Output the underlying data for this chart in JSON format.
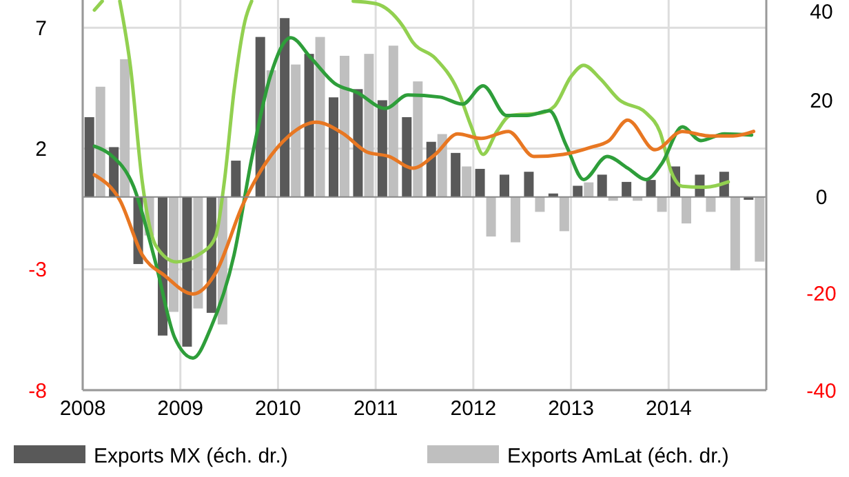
{
  "chart_data": {
    "type": "line",
    "xlim": [
      2008,
      2015
    ],
    "xticks": [
      2008,
      2009,
      2010,
      2011,
      2012,
      2013,
      2014
    ],
    "ylim": [
      -8,
      8.15
    ],
    "yticks": [
      -8,
      -3,
      2,
      7
    ],
    "y2lim": [
      -40,
      40.75
    ],
    "y2ticks": [
      -40,
      -20,
      0,
      20,
      40
    ],
    "grid": true,
    "legend": "bottom",
    "series": [
      {
        "type": "bar",
        "axis": "y2",
        "name": "Exports MX (éch. dr.)",
        "color": "#595959",
        "x": [
          2008.125,
          2008.375,
          2008.625,
          2008.875,
          2009.125,
          2009.375,
          2009.625,
          2009.875,
          2010.125,
          2010.375,
          2010.625,
          2010.875,
          2011.125,
          2011.375,
          2011.625,
          2011.875,
          2012.125,
          2012.375,
          2012.625,
          2012.875,
          2013.125,
          2013.375,
          2013.625,
          2013.875,
          2014.125,
          2014.375,
          2014.625,
          2014.875
        ],
        "values": [
          16.5,
          10.3,
          -13.9,
          -28.7,
          -31,
          -24,
          7.5,
          33.1,
          37,
          29.6,
          20.6,
          22.3,
          20,
          16.5,
          11.4,
          9.1,
          5.8,
          4.6,
          5.2,
          0.7,
          2.3,
          4.6,
          3.1,
          3.5,
          6.3,
          4.6,
          5.2,
          -0.6
        ]
      },
      {
        "type": "bar",
        "axis": "y2",
        "name": "Exports AmLat (éch. dr.)",
        "color": "#bfbfbf",
        "x": [
          2008.125,
          2008.375,
          2008.625,
          2008.875,
          2009.125,
          2009.375,
          2009.625,
          2009.875,
          2010.125,
          2010.375,
          2010.625,
          2010.875,
          2011.125,
          2011.375,
          2011.625,
          2011.875,
          2012.125,
          2012.375,
          2012.625,
          2012.875,
          2013.125,
          2013.375,
          2013.625,
          2013.875,
          2014.125,
          2014.375,
          2014.625,
          2014.875
        ],
        "values": [
          22.8,
          28.5,
          -8,
          -23.8,
          -23.1,
          -26.4,
          null,
          26.2,
          27.4,
          33.1,
          29.2,
          29.6,
          31.3,
          23.9,
          13,
          6.3,
          -8.2,
          -9.4,
          -3.1,
          -7.1,
          3,
          -0.8,
          -0.8,
          -3.1,
          -5.5,
          -3.1,
          -15.2,
          -13.4
        ]
      },
      {
        "color": "#92d050",
        "x": [
          2008.12,
          2008.2,
          null,
          2008.38,
          2008.49,
          2008.61,
          2008.75,
          2008.96,
          2009.22,
          2009.36,
          2009.45,
          2009.55,
          2009.66,
          2009.73,
          null,
          2010.77,
          2011.0,
          2011.28,
          2011.38,
          2011.61,
          2011.84,
          2011.98,
          2012.1,
          2012.24,
          2012.38,
          2012.69,
          2012.83,
          2013.0,
          2013.13,
          2013.3,
          2013.49,
          2013.77,
          2013.91,
          2014.03,
          2014.14,
          2014.38,
          2014.61
        ],
        "values": [
          7.73,
          8.1,
          null,
          8.1,
          5.36,
          0.62,
          -2.03,
          -2.69,
          -2.31,
          -1.65,
          0.62,
          4.4,
          7.25,
          8.1,
          null,
          8.1,
          8.0,
          7.06,
          6.4,
          5.74,
          4.41,
          2.9,
          1.76,
          2.7,
          3.37,
          3.47,
          3.75,
          4.98,
          5.45,
          4.89,
          4.03,
          3.47,
          2.7,
          1.0,
          0.44,
          0.4,
          0.62
        ]
      },
      {
        "color": "#2e9e3a",
        "x": [
          2008.12,
          2008.28,
          2008.52,
          2008.75,
          2008.94,
          2009.13,
          2009.31,
          2009.55,
          2009.73,
          2009.92,
          2010.13,
          2010.34,
          2010.58,
          2010.81,
          2011.1,
          2011.33,
          2011.66,
          2011.89,
          2012.1,
          2012.34,
          2012.55,
          2012.78,
          2012.95,
          2013.13,
          2013.37,
          2013.58,
          2013.77,
          2013.93,
          2014.14,
          2014.33,
          2014.57,
          2014.85
        ],
        "values": [
          2.1,
          1.76,
          0.44,
          -2.78,
          -5.81,
          -6.67,
          -5.44,
          -2.4,
          1.57,
          4.98,
          6.59,
          5.74,
          4.7,
          4.32,
          3.66,
          4.22,
          4.13,
          3.84,
          4.6,
          3.37,
          3.37,
          3.56,
          2.14,
          0.72,
          1.67,
          1.19,
          0.72,
          1.38,
          2.9,
          2.33,
          2.61,
          2.56
        ]
      },
      {
        "color": "#e87722",
        "x": [
          2008.12,
          2008.38,
          2008.61,
          2008.84,
          2009.13,
          2009.36,
          2009.64,
          2009.87,
          2010.11,
          2010.39,
          2010.67,
          2010.91,
          2011.14,
          2011.38,
          2011.61,
          2011.84,
          2012.08,
          2012.36,
          2012.62,
          2012.92,
          2013.2,
          2013.39,
          2013.58,
          2013.86,
          2014.14,
          2014.42,
          2014.66,
          2014.87
        ],
        "values": [
          0.91,
          -0.13,
          -2.4,
          -3.26,
          -4.02,
          -3.16,
          -0.32,
          1.38,
          2.52,
          3.09,
          2.61,
          1.86,
          1.67,
          1.19,
          1.76,
          2.61,
          2.42,
          2.71,
          1.67,
          1.76,
          2.05,
          2.33,
          3.18,
          1.95,
          2.71,
          2.52,
          2.52,
          2.71
        ]
      }
    ]
  }
}
